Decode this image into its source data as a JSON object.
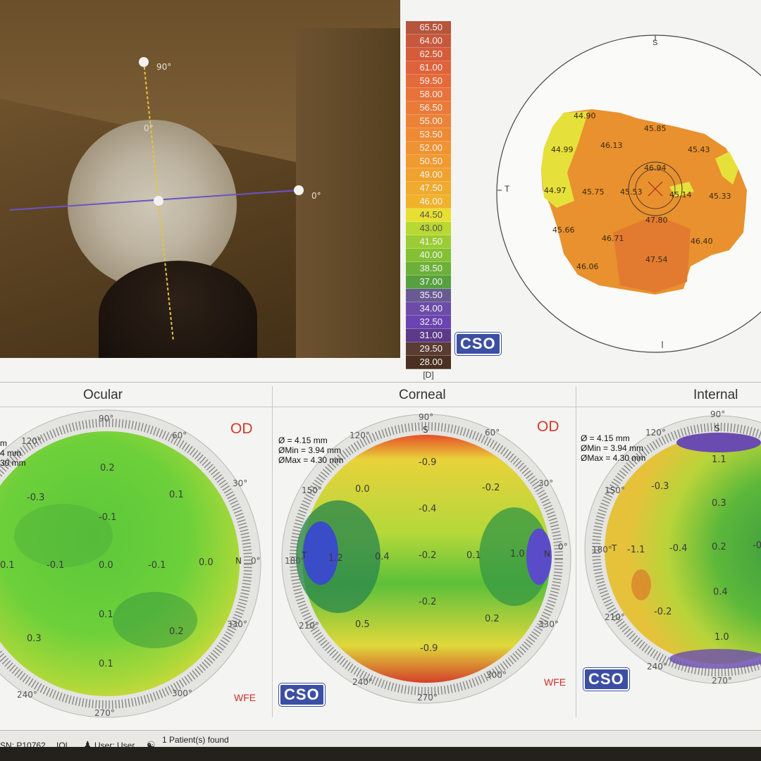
{
  "camera": {
    "angle_top": "90°",
    "angle_center": "0°",
    "angle_right": "0°"
  },
  "color_scale": {
    "unit": "[D]",
    "values": [
      "65.50",
      "64.00",
      "62.50",
      "61.00",
      "59.50",
      "58.00",
      "56.50",
      "55.00",
      "53.50",
      "52.00",
      "50.50",
      "49.00",
      "47.50",
      "46.00",
      "44.50",
      "43.00",
      "41.50",
      "40.00",
      "38.50",
      "37.00",
      "35.50",
      "34.00",
      "32.50",
      "31.00",
      "29.50",
      "28.00"
    ],
    "colors": [
      "#b6543c",
      "#c8583c",
      "#d45c3a",
      "#e0623a",
      "#e56a3a",
      "#e8723a",
      "#ea7a38",
      "#ec8236",
      "#ee8a34",
      "#ef9232",
      "#f09a30",
      "#f0a22e",
      "#f0aa2c",
      "#f0b22a",
      "#e8e030",
      "#b8d832",
      "#9ccc34",
      "#84c034",
      "#6cb038",
      "#56a040",
      "#6a5a94",
      "#6c4ca8",
      "#6a44b0",
      "#5c3a88",
      "#5a3c32",
      "#4a3020"
    ],
    "logo": "CSO"
  },
  "tangential_map": {
    "axis_s": "S",
    "axis_t": "T",
    "readings": [
      "44.90",
      "45.85",
      "44.99",
      "46.13",
      "45.43",
      "46.94",
      "44.97",
      "45.75",
      "45.53",
      "45.14",
      "45.33",
      "47.80",
      "45.66",
      "46.71",
      "46.40",
      "46.06",
      "47.54"
    ]
  },
  "panels": [
    {
      "title": "Ocular",
      "eye": "OD",
      "meta": [
        "m",
        "4 mm",
        "30 mm"
      ],
      "deg_labels": [
        "90°",
        "120°",
        "60°",
        "30°",
        "0°",
        "240°",
        "270°",
        "300°",
        "330°"
      ],
      "values": [
        "0.2",
        "-0.3",
        "0.1",
        "-0.1",
        "0.1",
        "-0.1",
        "0.0",
        "-0.1",
        "0.0",
        "0.1",
        "0.3",
        "0.2",
        "0.1"
      ],
      "wfe": "WFE",
      "nasal": "N"
    },
    {
      "title": "Corneal",
      "eye": "OD",
      "meta": [
        "Ø = 4.15 mm",
        "ØMin = 3.94 mm",
        "ØMax = 4.30 mm"
      ],
      "deg_labels": [
        "90°",
        "120°",
        "60°",
        "150°",
        "30°",
        "180°",
        "0°",
        "210°",
        "330°",
        "240°",
        "270°",
        "300°"
      ],
      "values": [
        "-0.9",
        "0.0",
        "-0.2",
        "-0.4",
        "1.2",
        "0.4",
        "-0.2",
        "0.1",
        "1.0",
        "-0.2",
        "0.5",
        "0.2",
        "-0.9"
      ],
      "wfe": "WFE",
      "nasal": "N",
      "temporal": "T",
      "axis_s": "S",
      "logo": "CSO"
    },
    {
      "title": "Internal",
      "meta": [
        "Ø = 4.15 mm",
        "ØMin = 3.94 mm",
        "ØMax = 4.30 mm"
      ],
      "deg_labels": [
        "90°",
        "120°",
        "150°",
        "180°",
        "210°",
        "240°",
        "270°"
      ],
      "values": [
        "1.1",
        "-0.3",
        "0.3",
        "-1.1",
        "-0.4",
        "0.2",
        "-0",
        "0.4",
        "-0.2",
        "1.0"
      ],
      "temporal": "T",
      "axis_s": "S",
      "logo": "CSO"
    }
  ],
  "status_bar": {
    "sn": "SN: P10762",
    "iol": "IOL",
    "user": "User: User",
    "patients": "1 Patient(s) found"
  }
}
